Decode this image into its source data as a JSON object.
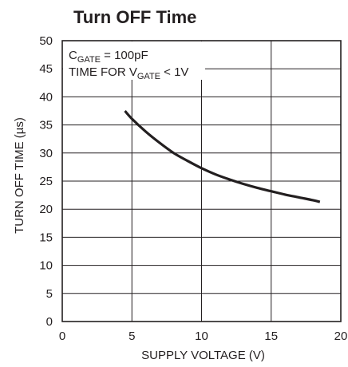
{
  "chart_data": {
    "type": "line",
    "title": "Turn OFF Time",
    "xlabel": "SUPPLY VOLTAGE (V)",
    "ylabel": "TURN OFF TIME (µs)",
    "xlim": [
      0,
      20
    ],
    "ylim": [
      0,
      50
    ],
    "x_ticks": [
      "0",
      "5",
      "10",
      "15",
      "20"
    ],
    "y_ticks": [
      "0",
      "5",
      "10",
      "15",
      "20",
      "25",
      "30",
      "35",
      "40",
      "45",
      "50"
    ],
    "grid": true,
    "annotations": [
      {
        "main": "C",
        "sub": "GATE",
        "rest": " = 100pF"
      },
      {
        "main": "TIME FOR V",
        "sub": "GATE",
        "rest": " < 1V"
      }
    ],
    "series": [
      {
        "color": "#231f20",
        "x": [
          4.5,
          5.0,
          6.0,
          7.0,
          8.0,
          9.0,
          10.0,
          11.0,
          12.0,
          13.0,
          14.0,
          15.0,
          16.0,
          17.0,
          18.0,
          18.5
        ],
        "y": [
          37.5,
          36.1,
          33.8,
          31.8,
          30.0,
          28.6,
          27.3,
          26.2,
          25.3,
          24.5,
          23.8,
          23.2,
          22.6,
          22.1,
          21.6,
          21.3
        ]
      }
    ]
  }
}
